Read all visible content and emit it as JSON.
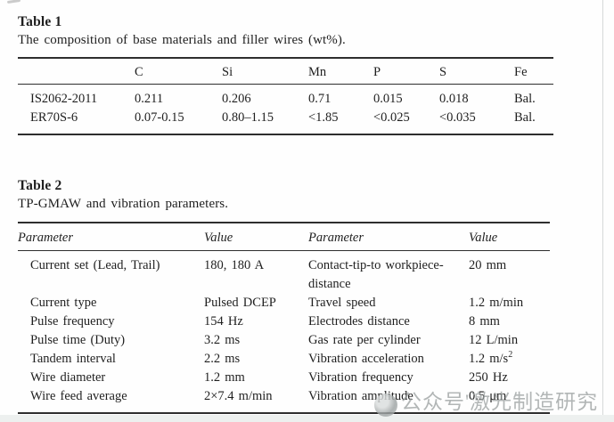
{
  "colors": {
    "rule": "#2e2e2e",
    "text": "#1f1f1f",
    "watermark": "#949a9a",
    "page_background": "#fefefe"
  },
  "table1": {
    "label": "Table 1",
    "caption": "The composition of base materials and filler wires (wt%).",
    "columns": [
      "",
      "C",
      "Si",
      "Mn",
      "P",
      "S",
      "Fe"
    ],
    "rows": [
      {
        "name": "IS2062-2011",
        "values": [
          "0.211",
          "0.206",
          "0.71",
          "0.015",
          "0.018",
          "Bal."
        ]
      },
      {
        "name": "ER70S-6",
        "values": [
          "0.07-0.15",
          "0.80–1.15",
          "<1.85",
          "<0.025",
          "<0.035",
          "Bal."
        ]
      }
    ]
  },
  "table2": {
    "label": "Table 2",
    "caption": "TP-GMAW and vibration parameters.",
    "columns": [
      "Parameter",
      "Value",
      "Parameter",
      "Value"
    ],
    "rows": [
      [
        "Current set (Lead, Trail)",
        "180, 180 A",
        "Contact-tip-to workpiece-distance",
        "20 mm"
      ],
      [
        "Current type",
        "Pulsed DCEP",
        "Travel speed",
        "1.2 m/min"
      ],
      [
        "Pulse frequency",
        "154 Hz",
        "Electrodes distance",
        "8 mm"
      ],
      [
        "Pulse time (Duty)",
        "3.2 ms",
        "Gas rate per cylinder",
        "12 L/min"
      ],
      [
        "Tandem interval",
        "2.2 ms",
        "Vibration acceleration",
        "1.2 m/s^2"
      ],
      [
        "Wire diameter",
        "1.2 mm",
        "Vibration frequency",
        "250 Hz"
      ],
      [
        "Wire feed average",
        "2×7.4 m/min",
        "Vibration amplitude",
        "0.5 μm"
      ]
    ]
  },
  "watermark": {
    "text": "公众号'激光制造研究"
  }
}
